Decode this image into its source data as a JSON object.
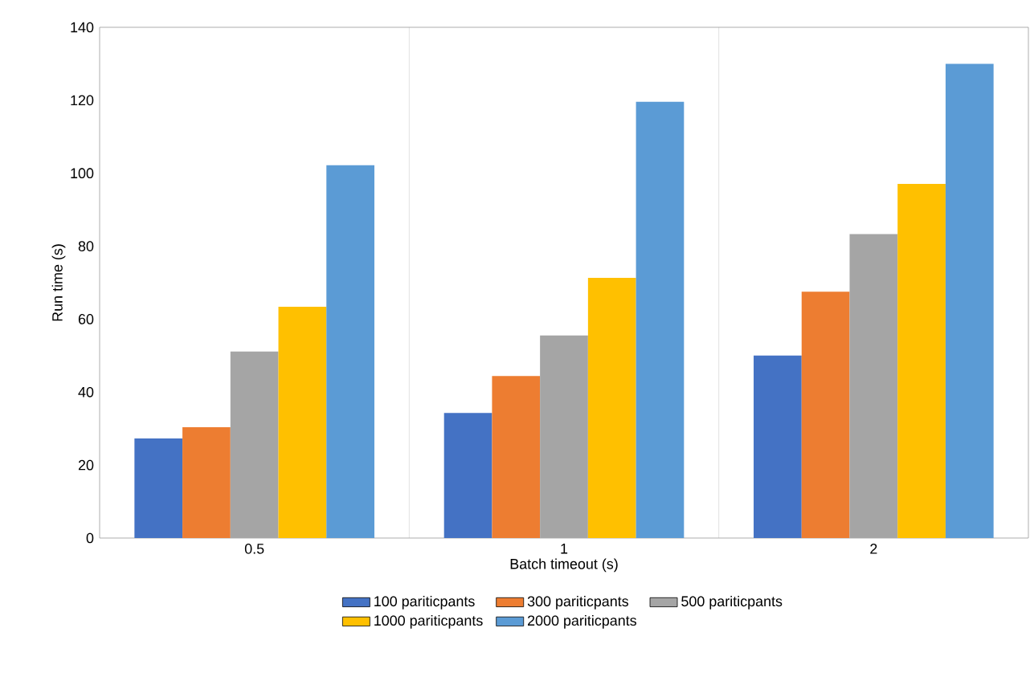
{
  "chart_data": {
    "type": "bar",
    "xlabel": "Batch timeout (s)",
    "ylabel": "Run time (s)",
    "categories": [
      "0.5",
      "1",
      "2"
    ],
    "series": [
      {
        "name": "100 pariticpants",
        "color": "#4472c4",
        "values": [
          27.3,
          34.3,
          50
        ]
      },
      {
        "name": "300 pariticpants",
        "color": "#ed7d31",
        "values": [
          30.4,
          44.4,
          67.5
        ]
      },
      {
        "name": "500 pariticpants",
        "color": "#a5a5a5",
        "values": [
          51.1,
          55.5,
          83.3
        ]
      },
      {
        "name": "1000 pariticpants",
        "color": "#ffc000",
        "values": [
          63.4,
          71.3,
          97.1
        ]
      },
      {
        "name": "2000 pariticpants",
        "color": "#5b9bd5",
        "values": [
          102.2,
          119.6,
          130
        ]
      }
    ],
    "ylim": [
      0,
      140
    ],
    "yticks": [
      0,
      20,
      40,
      60,
      80,
      100,
      120,
      140
    ],
    "grid": "x",
    "legend": "bottom"
  }
}
